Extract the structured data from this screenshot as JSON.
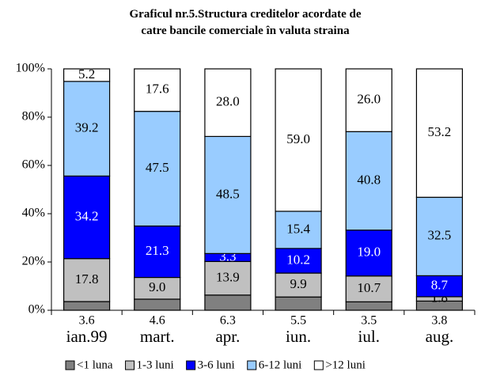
{
  "chart_data": {
    "type": "stacked_bar",
    "title": "Graficul nr.5.Structura creditelor acordate de catre bancile comerciale în valuta straina",
    "categories": [
      "ian.99",
      "mart.",
      "apr.",
      "iun.",
      "iul.",
      "aug."
    ],
    "series": [
      {
        "name": "<1 luna",
        "color": "#808080",
        "values": [
          3.6,
          4.6,
          6.3,
          5.5,
          3.5,
          3.8
        ],
        "value_labels": [
          "3.6",
          "4.6",
          "6.3",
          "5.5",
          "3.5",
          "3.8"
        ]
      },
      {
        "name": "1-3 luni",
        "color": "#c0c0c0",
        "values": [
          17.8,
          9.0,
          13.9,
          9.9,
          10.7,
          1.8
        ],
        "value_labels": [
          "17.8",
          "9.0",
          "13.9",
          "9.9",
          "10.7",
          "1.8"
        ]
      },
      {
        "name": "3-6 luni",
        "color": "#0000ff",
        "values": [
          34.2,
          21.3,
          3.3,
          10.2,
          19.0,
          8.7
        ],
        "value_labels": [
          "34.2",
          "21.3",
          "3.3",
          "10.2",
          "19.0",
          "8.7"
        ]
      },
      {
        "name": "6-12 luni",
        "color": "#99ccff",
        "values": [
          39.2,
          47.5,
          48.5,
          15.4,
          40.8,
          32.5
        ],
        "value_labels": [
          "39.2",
          "47.5",
          "48.5",
          "15.4",
          "40.8",
          "32.5"
        ]
      },
      {
        "name": ">12 luni",
        "color": "#ffffff",
        "values": [
          5.2,
          17.6,
          28.0,
          59.0,
          26.0,
          53.2
        ],
        "value_labels": [
          "5.2",
          "17.6",
          "28.0",
          "59.0",
          "26.0",
          "53.2"
        ]
      }
    ],
    "ylim": [
      0,
      100
    ],
    "yticks": [
      {
        "value": 0,
        "label": "0%"
      },
      {
        "value": 20,
        "label": "20%"
      },
      {
        "value": 40,
        "label": "40%"
      },
      {
        "value": 60,
        "label": "60%"
      },
      {
        "value": 80,
        "label": "80%"
      },
      {
        "value": 100,
        "label": "100%"
      }
    ],
    "legend": "bottom"
  }
}
